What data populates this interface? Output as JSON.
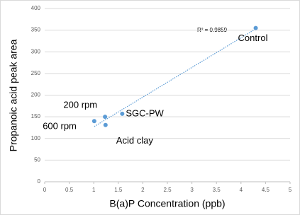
{
  "chart_data": {
    "type": "scatter",
    "xlabel": "B(a)P Concentration (ppb)",
    "ylabel": "Propanoic acid peak area",
    "annotation": "R² = 0.9859",
    "x": [
      4.3,
      1.23,
      1.01,
      1.24,
      1.58
    ],
    "series": [
      {
        "color": "#5b9bd5",
        "values": [
          355,
          150,
          140,
          131,
          157
        ],
        "labels": [
          "Control",
          "200 rpm",
          "600 rpm",
          "Acid clay",
          "SGC-PW"
        ]
      }
    ],
    "trendline": "linear",
    "xlim": [
      0,
      5
    ],
    "xticks": [
      0,
      0.5,
      1,
      1.5,
      2,
      2.5,
      3,
      3.5,
      4,
      4.5,
      5
    ],
    "ylim": [
      0,
      400
    ],
    "yticks": [
      0,
      50,
      100,
      150,
      200,
      250,
      300,
      350,
      400
    ],
    "grid": true
  }
}
